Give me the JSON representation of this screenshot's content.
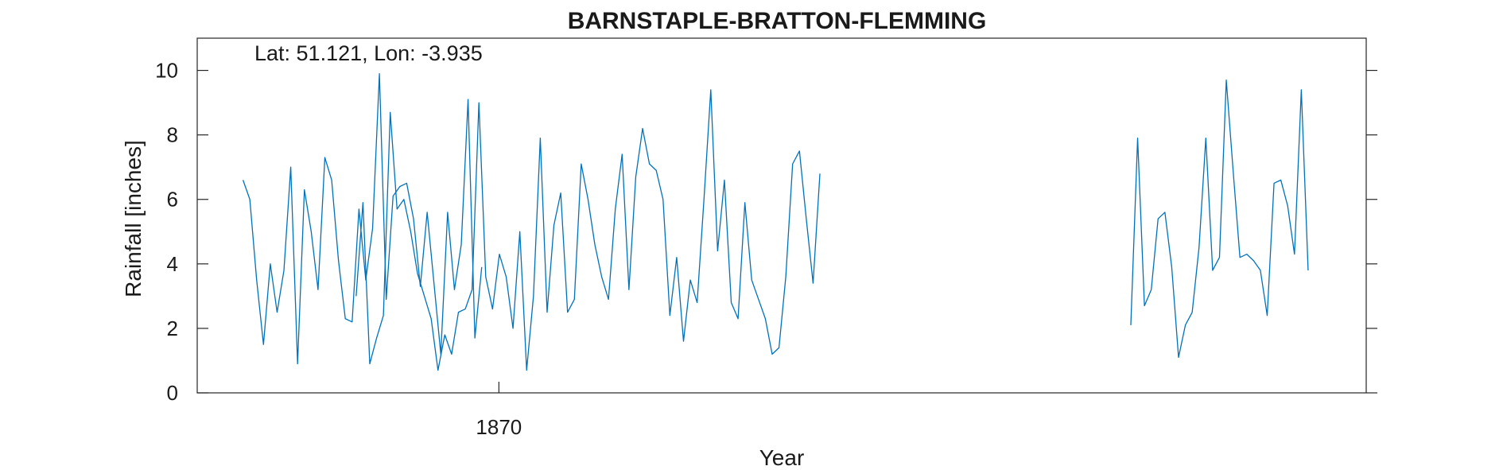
{
  "chart_data": {
    "type": "line",
    "title": "BARNSTAPLE-BRATTON-FLEMMING",
    "annotation": "Lat: 51.121, Lon: -3.935",
    "xlabel": "Year",
    "ylabel": "Rainfall [inches]",
    "xlim": [
      1864.4,
      1886.1
    ],
    "ylim": [
      0,
      11
    ],
    "x_ticks": [
      1870
    ],
    "x_tick_labels": [
      "1870"
    ],
    "y_ticks": [
      0,
      2,
      4,
      6,
      8,
      10
    ],
    "y_tick_labels": [
      "0",
      "2",
      "4",
      "6",
      "8",
      "10"
    ],
    "grid": false,
    "series_color": "#0072BD",
    "series": [
      {
        "segments": [
          {
            "start_year": 1865.25,
            "step_years": 0.1266,
            "values": [
              6.6,
              6.0,
              3.5,
              1.5,
              4.0,
              2.5,
              3.8,
              7.0,
              0.9,
              6.3,
              5.0,
              3.2,
              7.3,
              6.6,
              4.1,
              2.3,
              2.2,
              5.7,
              3.5,
              5.1,
              9.9,
              2.9,
              6.1,
              6.4,
              6.5,
              5.4,
              3.3,
              5.6,
              3.4,
              1.2,
              5.6,
              3.2,
              4.6,
              9.1,
              1.7,
              3.9
            ]
          },
          {
            "start_year": 1867.35,
            "step_years": 0.1266,
            "values": [
              3.0,
              5.9,
              0.9,
              1.7,
              2.4,
              8.7,
              5.7,
              6.0,
              5.0,
              3.7,
              3.0,
              2.3,
              0.7,
              1.8,
              1.2,
              2.5,
              2.6,
              3.2,
              9.0,
              3.6,
              2.6,
              4.3,
              3.6,
              2.0,
              5.0,
              0.7,
              3.0,
              7.9,
              2.5,
              5.2,
              6.2,
              2.5,
              2.9,
              7.1,
              6.0,
              4.6,
              3.6,
              2.9,
              5.7,
              7.4,
              3.2,
              6.7,
              8.2,
              7.1,
              6.9,
              6.0,
              2.4,
              4.2,
              1.6,
              3.5,
              2.8,
              6.0,
              9.4,
              4.4,
              6.6,
              2.8,
              2.3,
              5.9,
              3.5,
              2.9,
              2.3,
              1.2,
              1.4,
              3.6,
              7.1,
              7.5,
              5.4,
              3.4,
              6.8
            ]
          },
          {
            "start_year": 1881.73,
            "step_years": 0.1266,
            "values": [
              2.1,
              7.9,
              2.7,
              3.2,
              5.4,
              5.6,
              3.9,
              1.1,
              2.1,
              2.5,
              4.5,
              7.9,
              3.8,
              4.2,
              9.7,
              6.9,
              4.2,
              4.3,
              4.1,
              3.8,
              2.4,
              6.5,
              6.6,
              5.8,
              4.3,
              9.4,
              3.8
            ]
          }
        ]
      }
    ]
  }
}
